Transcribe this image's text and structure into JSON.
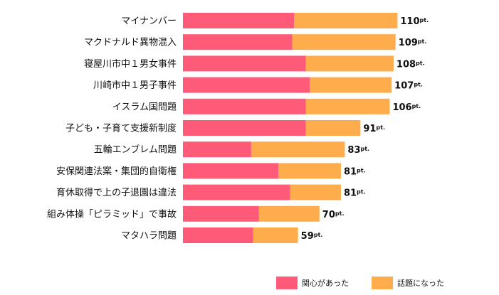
{
  "chart_data": {
    "type": "bar",
    "orientation": "horizontal",
    "stacked": true,
    "categories": [
      "マイナンバー",
      "マクドナルド異物混入",
      "寝屋川市中１男女事件",
      "川崎市中１男子事件",
      "イスラム国問題",
      "子ども・子育て支援新制度",
      "五輪エンブレム問題",
      "安保関連法案・集団的自衛権",
      "育休取得で上の子退園は違法",
      "組み体操「ピラミッド」で事故",
      "マタハラ問題"
    ],
    "series": [
      {
        "name": "関心があった",
        "color": "#ff5a78",
        "values": [
          57,
          56,
          63,
          65,
          63,
          63,
          35,
          49,
          55,
          39,
          36
        ]
      },
      {
        "name": "話題になった",
        "color": "#ffad4c",
        "values": [
          53,
          53,
          45,
          42,
          43,
          28,
          48,
          32,
          26,
          31,
          23
        ]
      }
    ],
    "totals": [
      110,
      109,
      108,
      107,
      106,
      91,
      83,
      81,
      81,
      70,
      59
    ],
    "unit": "pt.",
    "xlim": [
      0,
      110
    ],
    "grid": false,
    "legend_position": "bottom-right"
  }
}
